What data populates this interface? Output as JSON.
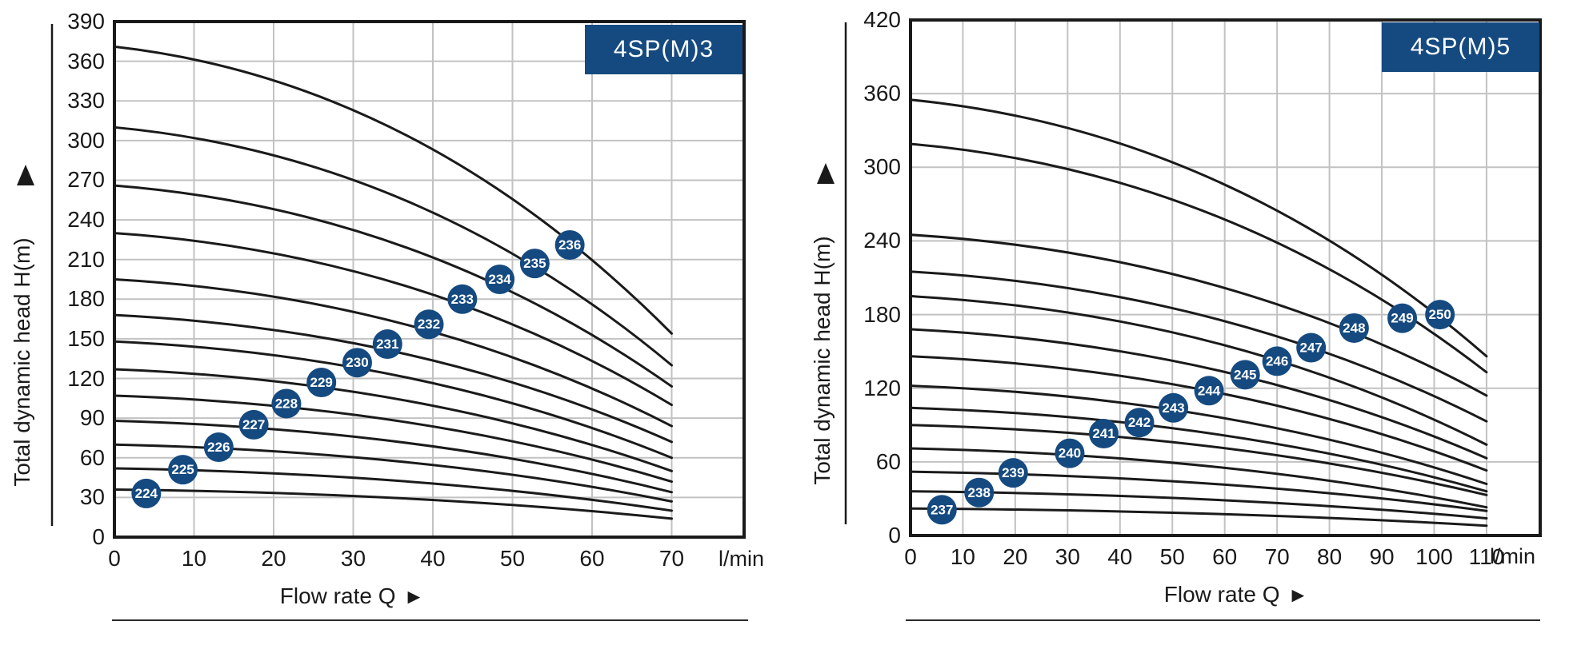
{
  "colors": {
    "accent_navy": "#154a80",
    "curve": "#1a1a1a",
    "grid": "#c2c2c2",
    "border": "#1a1a1a",
    "text": "#1a1a1a",
    "badge_text": "#ffffff"
  },
  "chart_data": [
    {
      "type": "line",
      "title": "4SP(M)3",
      "ylabel": "Total dynamic head H(m)",
      "y_arrow": "▲",
      "xlabel": "Flow rate Q",
      "x_arrow": "►",
      "x_unit": "l/min",
      "xlim": [
        0,
        79
      ],
      "ylim": [
        0,
        390
      ],
      "x_ticks": [
        0,
        10,
        20,
        30,
        40,
        50,
        60,
        70
      ],
      "y_ticks": [
        0,
        30,
        60,
        90,
        120,
        150,
        180,
        210,
        240,
        270,
        300,
        330,
        360,
        390
      ],
      "q_curve_end": 70,
      "grid": true,
      "legend": "model badges placed on curves",
      "series": [
        {
          "model": "224",
          "h_start": 36,
          "h_end": 14,
          "badge_q": 4.0,
          "badge_h": 33
        },
        {
          "model": "225",
          "h_start": 52,
          "h_end": 20,
          "badge_q": 8.6,
          "badge_h": 51
        },
        {
          "model": "226",
          "h_start": 70,
          "h_end": 27,
          "badge_q": 13.1,
          "badge_h": 68
        },
        {
          "model": "227",
          "h_start": 88,
          "h_end": 34,
          "badge_q": 17.5,
          "badge_h": 85
        },
        {
          "model": "228",
          "h_start": 107,
          "h_end": 42,
          "badge_q": 21.6,
          "badge_h": 101
        },
        {
          "model": "229",
          "h_start": 127,
          "h_end": 50,
          "badge_q": 26.0,
          "badge_h": 117
        },
        {
          "model": "230",
          "h_start": 148,
          "h_end": 60,
          "badge_q": 30.5,
          "badge_h": 132
        },
        {
          "model": "231",
          "h_start": 168,
          "h_end": 72,
          "badge_q": 34.3,
          "badge_h": 146
        },
        {
          "model": "232",
          "h_start": 195,
          "h_end": 84,
          "badge_q": 39.5,
          "badge_h": 161
        },
        {
          "model": "233",
          "h_start": 230,
          "h_end": 100,
          "badge_q": 43.7,
          "badge_h": 180
        },
        {
          "model": "234",
          "h_start": 266,
          "h_end": 114,
          "badge_q": 48.4,
          "badge_h": 195
        },
        {
          "model": "235",
          "h_start": 310,
          "h_end": 130,
          "badge_q": 52.8,
          "badge_h": 207
        },
        {
          "model": "236",
          "h_start": 371,
          "h_end": 154,
          "badge_q": 57.2,
          "badge_h": 221
        }
      ]
    },
    {
      "type": "line",
      "title": "4SP(M)5",
      "ylabel": "Total dynamic head H(m)",
      "y_arrow": "▲",
      "xlabel": "Flow rate Q",
      "x_arrow": "►",
      "x_unit": "l/min",
      "xlim": [
        0,
        120
      ],
      "ylim": [
        0,
        420
      ],
      "x_ticks": [
        0,
        10,
        20,
        30,
        40,
        50,
        60,
        70,
        80,
        90,
        100,
        110
      ],
      "y_ticks": [
        0,
        60,
        120,
        180,
        240,
        300,
        360,
        420
      ],
      "q_curve_end": 110,
      "grid": true,
      "legend": "model badges placed on curves",
      "series": [
        {
          "model": "237",
          "h_start": 22,
          "h_end": 8,
          "badge_q": 6.0,
          "badge_h": 21
        },
        {
          "model": "238",
          "h_start": 36,
          "h_end": 14,
          "badge_q": 13.1,
          "badge_h": 35
        },
        {
          "model": "239",
          "h_start": 52,
          "h_end": 20,
          "badge_q": 19.6,
          "badge_h": 51
        },
        {
          "model": "240",
          "h_start": 71,
          "h_end": 23,
          "badge_q": 30.4,
          "badge_h": 67
        },
        {
          "model": "241",
          "h_start": 90,
          "h_end": 33,
          "badge_q": 36.9,
          "badge_h": 83
        },
        {
          "model": "242",
          "h_start": 104,
          "h_end": 36,
          "badge_q": 43.7,
          "badge_h": 92
        },
        {
          "model": "243",
          "h_start": 122,
          "h_end": 42,
          "badge_q": 50.2,
          "badge_h": 104
        },
        {
          "model": "244",
          "h_start": 146,
          "h_end": 53,
          "badge_q": 57.0,
          "badge_h": 118
        },
        {
          "model": "245",
          "h_start": 168,
          "h_end": 63,
          "badge_q": 63.9,
          "badge_h": 131
        },
        {
          "model": "246",
          "h_start": 195,
          "h_end": 74,
          "badge_q": 70.0,
          "badge_h": 142
        },
        {
          "model": "247",
          "h_start": 215,
          "h_end": 93,
          "badge_q": 76.5,
          "badge_h": 153
        },
        {
          "model": "248",
          "h_start": 245,
          "h_end": 114,
          "badge_q": 84.7,
          "badge_h": 169
        },
        {
          "model": "249",
          "h_start": 319,
          "h_end": 133,
          "badge_q": 93.9,
          "badge_h": 177
        },
        {
          "model": "250",
          "h_start": 355,
          "h_end": 146,
          "badge_q": 101.1,
          "badge_h": 180
        }
      ]
    }
  ]
}
